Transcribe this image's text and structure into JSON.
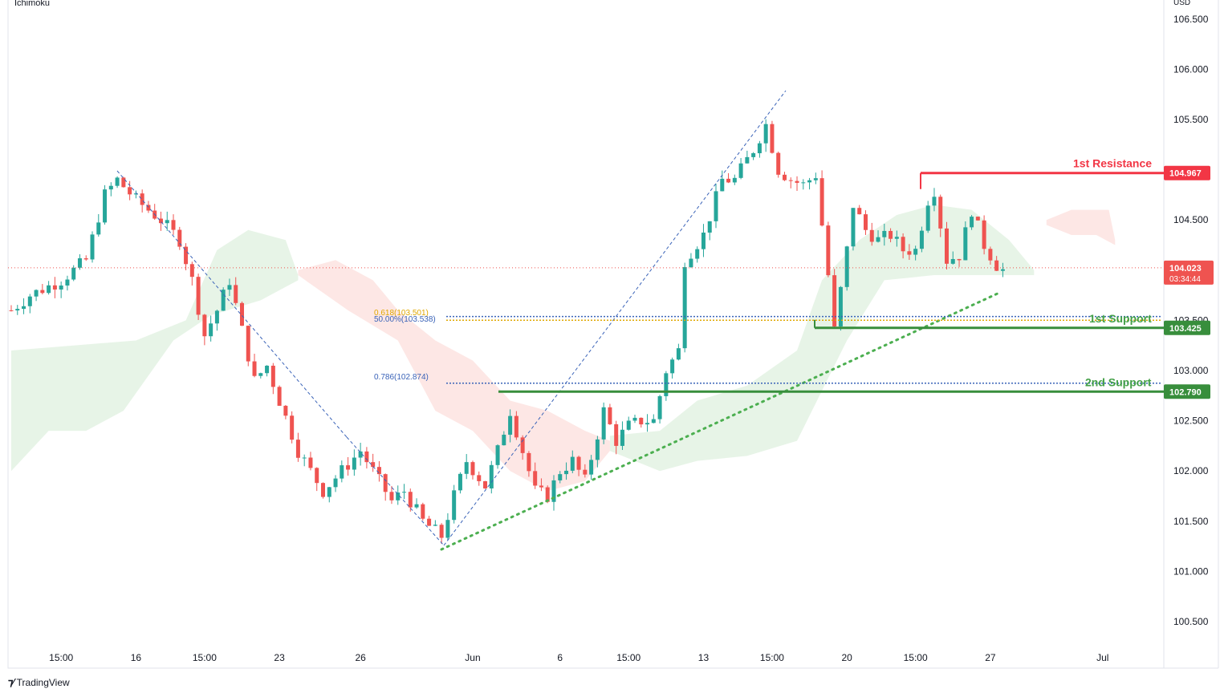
{
  "indicator": "Ichimoku",
  "currency": "USD",
  "brand": "TradingView",
  "colors": {
    "up": "#26a69a",
    "down": "#ef5350",
    "resistance": "#f23645",
    "support": "#388e3c",
    "support_text": "#43a047",
    "cloud_green": "#e3f2e3",
    "cloud_red": "#fde3e1",
    "trend_dotted": "#4caf50",
    "fib_blue": "#3a63b8",
    "fib_orange": "#e0a800",
    "price_line": "#ef5350",
    "dashed_trend": "#3a63b8"
  },
  "chart_data": {
    "type": "candlestick",
    "y_axis": {
      "min": 100.2,
      "max": 106.7,
      "ticks": [
        100.5,
        101.0,
        101.5,
        102.0,
        102.5,
        103.0,
        103.5,
        104.0,
        104.5,
        105.0,
        105.5,
        106.0,
        106.5
      ],
      "tick_labels": [
        "100.500",
        "101.000",
        "101.500",
        "102.000",
        "102.500",
        "103.000",
        "103.500",
        "",
        "104.500",
        "",
        "105.500",
        "106.000",
        "106.500"
      ]
    },
    "x_axis": {
      "bar_count": 178,
      "ticks": [
        {
          "index": 8,
          "label": "15:00"
        },
        {
          "index": 20,
          "label": "16"
        },
        {
          "index": 31,
          "label": "15:00"
        },
        {
          "index": 43,
          "label": "23"
        },
        {
          "index": 56,
          "label": "26"
        },
        {
          "index": 74,
          "label": "Jun"
        },
        {
          "index": 88,
          "label": "6"
        },
        {
          "index": 99,
          "label": "15:00"
        },
        {
          "index": 111,
          "label": "13"
        },
        {
          "index": 122,
          "label": "15:00"
        },
        {
          "index": 134,
          "label": "20"
        },
        {
          "index": 145,
          "label": "15:00"
        },
        {
          "index": 157,
          "label": "27"
        },
        {
          "index": 175,
          "label": "Jul"
        }
      ]
    },
    "candles": [],
    "levels": [
      {
        "name": "1st Resistance",
        "value": 104.967,
        "label": "104.967",
        "kind": "resistance"
      },
      {
        "name": "1st Support",
        "value": 103.425,
        "label": "103.425",
        "kind": "support"
      },
      {
        "name": "2nd Support",
        "value": 102.79,
        "label": "102.790",
        "kind": "support"
      }
    ],
    "fibonacci": [
      {
        "label": "0.618(103.501)",
        "value": 103.501,
        "color": "orange"
      },
      {
        "label": "50.00%(103.538)",
        "value": 103.538,
        "color": "blue"
      },
      {
        "label": "0.786(102.874)",
        "value": 102.874,
        "color": "blue"
      }
    ],
    "current_price": {
      "value": 104.023,
      "label": "104.023",
      "countdown": "03:34:44"
    }
  }
}
